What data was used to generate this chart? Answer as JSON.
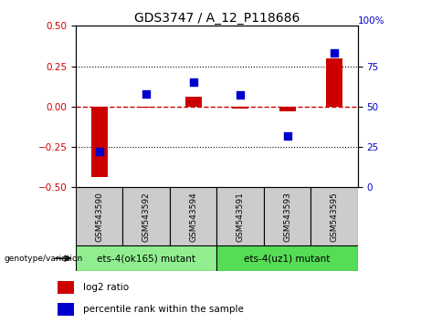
{
  "title": "GDS3747 / A_12_P118686",
  "samples": [
    "GSM543590",
    "GSM543592",
    "GSM543594",
    "GSM543591",
    "GSM543593",
    "GSM543595"
  ],
  "log2_ratio": [
    -0.435,
    -0.008,
    0.062,
    -0.01,
    -0.032,
    0.3
  ],
  "percentile": [
    22,
    58,
    65,
    57,
    32,
    83
  ],
  "ylim_left": [
    -0.5,
    0.5
  ],
  "ylim_right": [
    0,
    100
  ],
  "bar_color": "#cc0000",
  "dot_color": "#0000cc",
  "hline_color": "#cc0000",
  "dotted_vals": [
    0.25,
    -0.25
  ],
  "group1_label": "ets-4(ok165) mutant",
  "group2_label": "ets-4(uz1) mutant",
  "group1_indices": [
    0,
    1,
    2
  ],
  "group2_indices": [
    3,
    4,
    5
  ],
  "group1_color": "#90ee90",
  "group2_color": "#55dd55",
  "genotype_label": "genotype/variation",
  "legend_log2": "log2 ratio",
  "legend_pct": "percentile rank within the sample",
  "bar_width": 0.35,
  "dot_size": 40,
  "title_fontsize": 10,
  "tick_fontsize": 7.5,
  "label_fontsize": 7.5,
  "right_yticks": [
    0,
    25,
    50,
    75
  ],
  "right_ytick_labels": [
    "0",
    "25",
    "50",
    "75"
  ],
  "left_yticks": [
    -0.5,
    -0.25,
    0,
    0.25,
    0.5
  ]
}
